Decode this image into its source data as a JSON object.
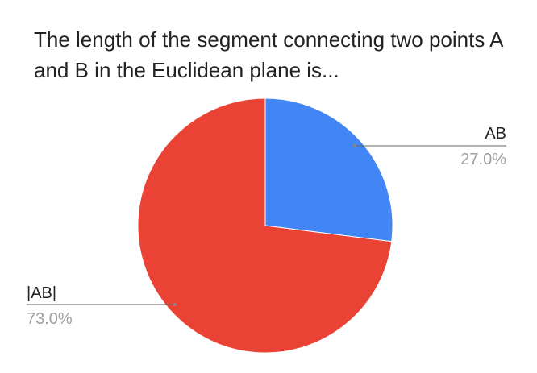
{
  "chart_data": {
    "type": "pie",
    "title": "The length of the segment connecting two points A and B in the Euclidean plane is...",
    "slices": [
      {
        "label": "AB",
        "value": 27.0,
        "value_label": "27.0%",
        "color": "#4285f4"
      },
      {
        "label": "|AB|",
        "value": 73.0,
        "value_label": "73.0%",
        "color": "#ea4335"
      }
    ],
    "legend": "none",
    "label_color": "#222222",
    "value_label_color": "#9e9e9e"
  }
}
